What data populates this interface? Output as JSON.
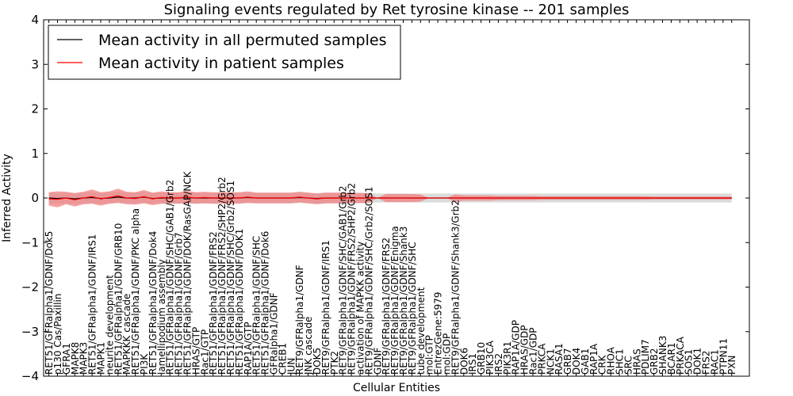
{
  "chart_data": {
    "type": "line",
    "title": "Signaling events regulated by Ret tyrosine kinase -- 201 samples",
    "xlabel": "Cellular Entities",
    "ylabel": "Inferred Activity",
    "ylim": [
      -4,
      4
    ],
    "yticks": [
      "−4",
      "−3",
      "−2",
      "−1",
      "0",
      "1",
      "2",
      "3",
      "4"
    ],
    "legend_position": "top-left",
    "categories": [
      "RET51/GFRalpha1/GDNF/Dok5",
      "p130 Cas/Paxillin",
      "GFRA1",
      "MAPK8",
      "MAPK3",
      "RET51/GFRalpha1/GDNF/IRS1",
      "MAPK1",
      "neurite development",
      "RET51/GFRalpha1/GDNF/GRB10",
      "MAPKKK cascade",
      "RET51/GFRalpha1/GDNF/PKC alpha",
      "PI3K",
      "RET51/GFRalpha1/GDNF/Dok4",
      "lamellipodium assembly",
      "RET51/GFRalpha1/GDNF/SHC/GAB1/Grb2",
      "RET51/GFRalpha1/GDNF/Grb7",
      "RET51/GFRalpha1/GDNF/DOK/RasGAP/NCK",
      "HRAS/GTP",
      "Rac1/GTP",
      "RET51/GFRalpha1/GDNF/FRS2",
      "RET51/GFRalpha1/GDNF/FRS2/SHP2/Grb2",
      "RET51/GFRalpha1/GDNF/SHC/Grb2/SOS1",
      "RET51/GFRalpha1/GDNF/DOK1",
      "RAP1A/GTP",
      "RET51/GFRalpha1/GDNF/SHC",
      "RET51/GFRalpha1/GDNF/Dok6",
      "GFRalpha1/GDNF",
      "CREB1",
      "JUN",
      "RET9/GFRalpha1/GDNF",
      "JNK cascade",
      "DOK5",
      "RET9/GFRalpha1/GDNF/IRS1",
      "PTK2",
      "RET9/GFRalpha1/GDNF/SHC/GAB1/Grb2",
      "RET9/GFRalpha1/GDNF/FRS2/SHP2/Grb2",
      "activation of MAPKK activity",
      "RET9/GFRalpha1/GDNF/SHC/Grb2/SOS1",
      "GDNF",
      "RET9/GFRalpha1/GDNF/FRS2",
      "RET9/GFRalpha1/GDNF/Enigma",
      "RET9/GFRalpha1/GDNF/Shank3",
      "RET9/GFRalpha1/GDNF/SHC",
      "tube development",
      "mol:GTP",
      "EntrezGene:5979",
      "mol:GDP",
      "RET9/GFRalpha1/GDNF/Shank3/Grb2",
      "DOK6",
      "IRS1",
      "GRB10",
      "PIK3CA",
      "IRS2",
      "PIK3R1",
      "RAP1A/GDP",
      "HRAS/GDP",
      "Rac1/GDP",
      "PRKCA",
      "NCK1",
      "RASA1",
      "GRB7",
      "DOK4",
      "GAB1",
      "RAP1A",
      "CRK",
      "RHOA",
      "SHC1",
      "SRC",
      "HRAS",
      "PDLIM7",
      "GRB2",
      "SHANK3",
      "BCAR1",
      "PRKACA",
      "SOS1",
      "DOK1",
      "FRS2",
      "RAC1",
      "PTPN11",
      "PXN"
    ],
    "series": [
      {
        "name": "Mean activity in all permuted samples",
        "color": "#000000",
        "band_color": "#cccccc",
        "values": [
          0.0,
          -0.01,
          0.0,
          -0.02,
          0.0,
          0.01,
          -0.01,
          0.0,
          0.02,
          0.0,
          0.0,
          0.02,
          -0.01,
          0.0,
          0.0,
          0.0,
          0.01,
          0.0,
          0.0,
          0.0,
          0.0,
          0.0,
          0.0,
          0.01,
          0.0,
          0.0,
          0.0,
          0.0,
          0.0,
          0.01,
          0.0,
          -0.01,
          0.0,
          0.0,
          0.0,
          0.0,
          0.0,
          0.0,
          0.0,
          0.0,
          0.0,
          0.0,
          0.0,
          0.0,
          0.0,
          0.0,
          0.0,
          0.0,
          0.0,
          0.0,
          0.0,
          0.0,
          0.0,
          0.0,
          0.0,
          0.0,
          0.0,
          0.0,
          0.0,
          0.0,
          0.0,
          0.0,
          0.0,
          0.0,
          0.0,
          0.0,
          0.0,
          0.0,
          0.0,
          0.0,
          0.0,
          0.0,
          0.0,
          0.0,
          0.0,
          0.0,
          0.0,
          0.0,
          0.0,
          0.0
        ],
        "band_halfwidth": [
          0.13,
          0.12,
          0.12,
          0.12,
          0.12,
          0.12,
          0.12,
          0.12,
          0.12,
          0.12,
          0.12,
          0.12,
          0.12,
          0.12,
          0.12,
          0.12,
          0.12,
          0.12,
          0.12,
          0.12,
          0.12,
          0.12,
          0.12,
          0.12,
          0.12,
          0.12,
          0.12,
          0.12,
          0.12,
          0.12,
          0.12,
          0.12,
          0.12,
          0.12,
          0.12,
          0.12,
          0.12,
          0.11,
          0.1,
          0.1,
          0.1,
          0.1,
          0.1,
          0.1,
          0.1,
          0.1,
          0.1,
          0.1,
          0.1,
          0.1,
          0.1,
          0.1,
          0.1,
          0.1,
          0.1,
          0.1,
          0.1,
          0.1,
          0.1,
          0.1,
          0.1,
          0.1,
          0.1,
          0.1,
          0.1,
          0.1,
          0.1,
          0.1,
          0.1,
          0.1,
          0.1,
          0.1,
          0.1,
          0.1,
          0.1,
          0.1,
          0.1,
          0.1,
          0.1,
          0.1
        ]
      },
      {
        "name": "Mean activity in patient samples",
        "color": "#ff0000",
        "band_color": "#f08080",
        "values": [
          -0.02,
          -0.03,
          0.0,
          -0.04,
          0.0,
          0.03,
          -0.02,
          0.01,
          0.05,
          0.0,
          -0.01,
          0.03,
          -0.02,
          0.01,
          0.0,
          0.0,
          0.02,
          0.0,
          0.01,
          0.0,
          0.0,
          0.0,
          0.0,
          0.02,
          0.0,
          0.0,
          0.0,
          0.0,
          0.0,
          0.02,
          0.0,
          -0.02,
          0.0,
          0.0,
          0.0,
          0.0,
          0.0,
          0.0,
          0.0,
          0.0,
          0.0,
          0.0,
          0.0,
          0.0,
          0.0,
          0.0,
          0.0,
          0.0,
          0.0,
          0.0,
          0.0,
          0.0,
          0.0,
          0.0,
          0.0,
          0.0,
          0.0,
          0.0,
          0.0,
          0.0,
          0.0,
          0.0,
          0.0,
          0.0,
          0.0,
          0.0,
          0.0,
          0.0,
          0.0,
          0.0,
          0.0,
          0.0,
          0.0,
          0.0,
          0.0,
          0.0,
          0.0,
          0.0,
          0.0,
          0.0
        ],
        "band_halfwidth": [
          0.15,
          0.18,
          0.14,
          0.15,
          0.14,
          0.16,
          0.15,
          0.14,
          0.16,
          0.14,
          0.14,
          0.15,
          0.14,
          0.14,
          0.13,
          0.13,
          0.14,
          0.13,
          0.13,
          0.13,
          0.13,
          0.13,
          0.13,
          0.13,
          0.12,
          0.12,
          0.12,
          0.12,
          0.12,
          0.12,
          0.12,
          0.12,
          0.12,
          0.12,
          0.12,
          0.12,
          0.11,
          0.11,
          0.0,
          0.09,
          0.09,
          0.09,
          0.09,
          0.08,
          0.0,
          0.0,
          0.0,
          0.08,
          0.06,
          0.06,
          0.06,
          0.06,
          0.05,
          0.05,
          0.05,
          0.05,
          0.05,
          0.04,
          0.04,
          0.04,
          0.04,
          0.04,
          0.04,
          0.04,
          0.04,
          0.04,
          0.04,
          0.04,
          0.04,
          0.04,
          0.03,
          0.03,
          0.03,
          0.03,
          0.03,
          0.03,
          0.03,
          0.03,
          0.03,
          0.03
        ]
      }
    ]
  }
}
